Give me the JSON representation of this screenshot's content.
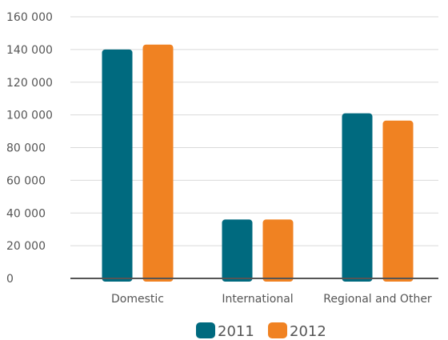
{
  "chart_data": {
    "type": "bar",
    "title": "",
    "xlabel": "",
    "ylabel": "",
    "categories": [
      "Domestic",
      "International",
      "Regional and Other"
    ],
    "series": [
      {
        "name": "2011",
        "color": "#006a7f",
        "values": [
          140000,
          36000,
          101000
        ]
      },
      {
        "name": "2012",
        "color": "#f08222",
        "values": [
          143000,
          36000,
          96500
        ]
      }
    ],
    "ylim": [
      0,
      160000
    ],
    "yticks": [
      0,
      20000,
      40000,
      60000,
      80000,
      100000,
      120000,
      140000,
      160000
    ],
    "ytick_labels": [
      "0",
      "20 000",
      "40 000",
      "60 000",
      "80 000",
      "100 000",
      "120 000",
      "140 000",
      "160 000"
    ],
    "grid": true,
    "legend_position": "bottom-center"
  }
}
